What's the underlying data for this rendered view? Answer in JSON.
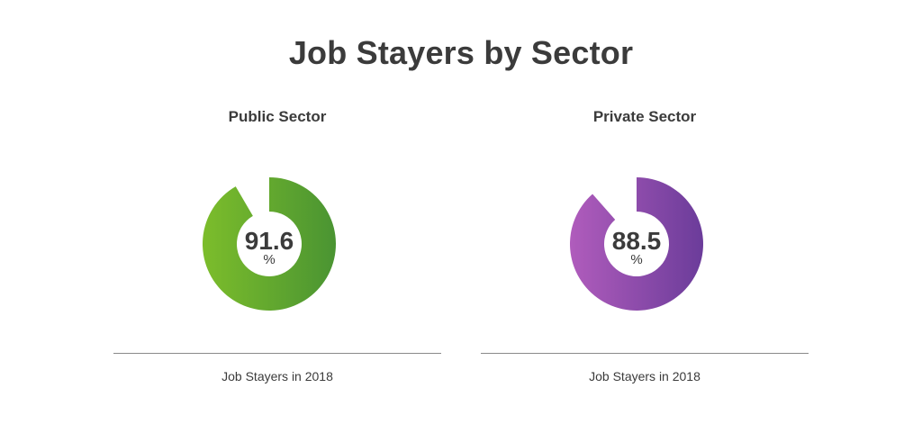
{
  "title": "Job Stayers by Sector",
  "chart_data": [
    {
      "type": "pie",
      "title": "Public Sector",
      "value": 91.6,
      "unit": "%",
      "caption": "Job Stayers in 2018",
      "colors": {
        "start": "#7cbd2b",
        "end": "#4a9432"
      }
    },
    {
      "type": "pie",
      "title": "Private Sector",
      "value": 88.5,
      "unit": "%",
      "caption": "Job Stayers in 2018",
      "colors": {
        "start": "#b05cbc",
        "end": "#6b3c9a"
      }
    }
  ]
}
